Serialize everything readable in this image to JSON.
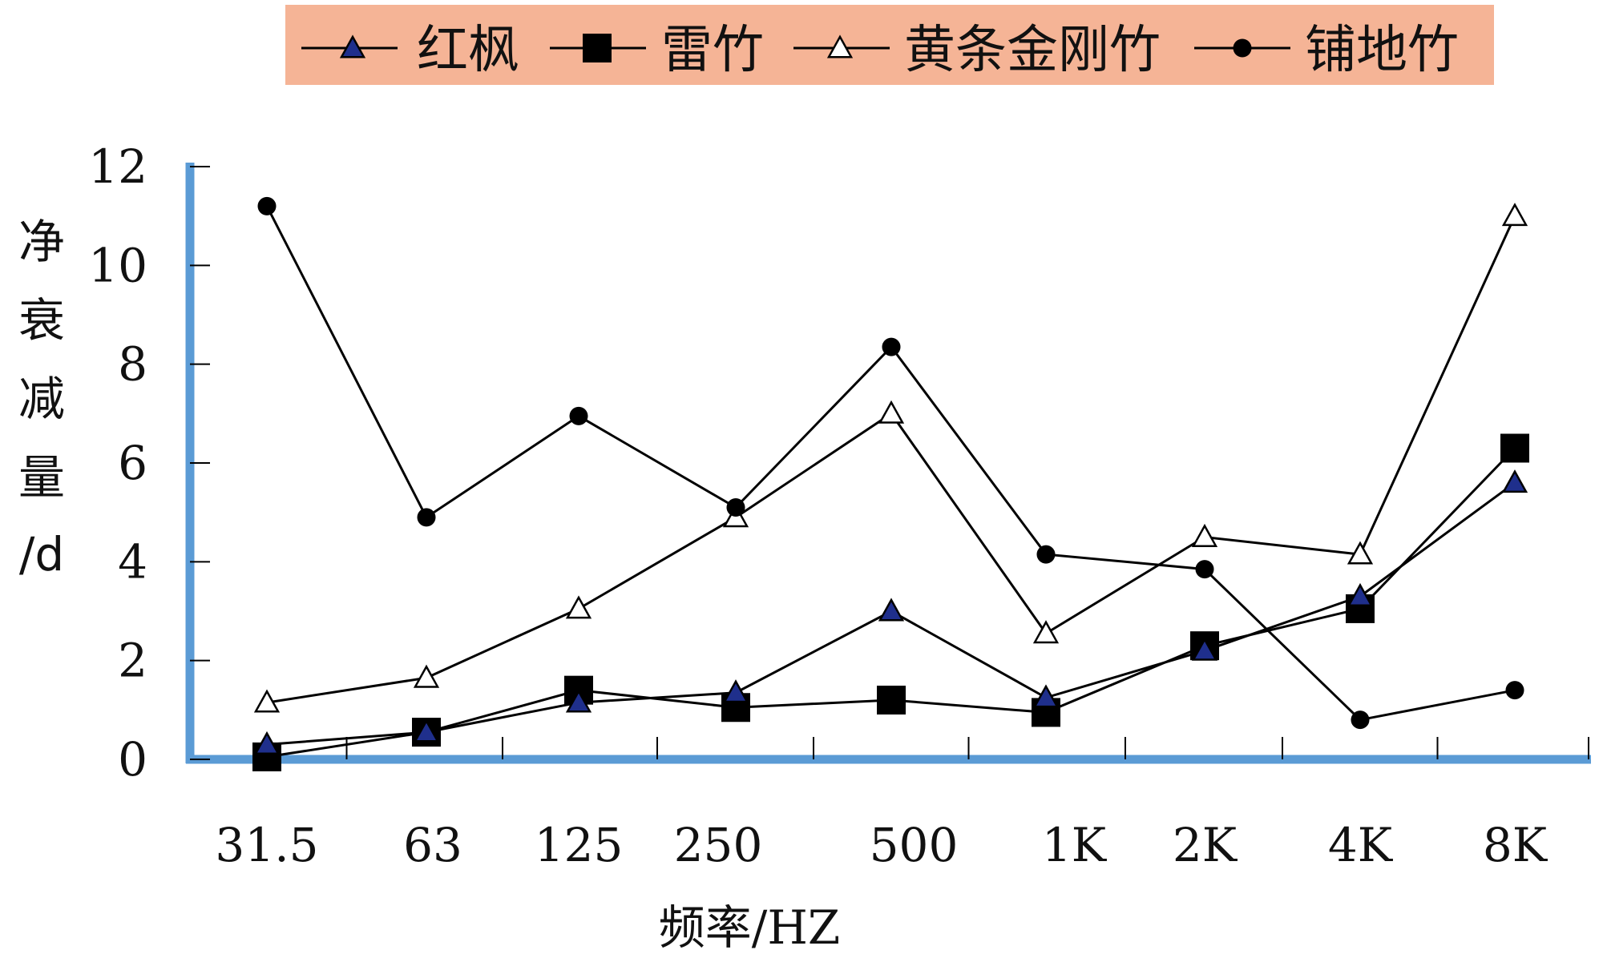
{
  "chart_data": {
    "type": "line",
    "categories": [
      "31.5",
      "63",
      "125",
      "250",
      "500",
      "1K",
      "2K",
      "4K",
      "8K"
    ],
    "series": [
      {
        "name": "红枫",
        "marker": "triangle-filled",
        "values": [
          0.3,
          0.55,
          1.15,
          1.35,
          3.0,
          1.25,
          2.2,
          3.3,
          5.6
        ]
      },
      {
        "name": "雷竹",
        "marker": "square-filled",
        "values": [
          0.05,
          0.55,
          1.4,
          1.05,
          1.2,
          0.95,
          2.3,
          3.05,
          6.3
        ]
      },
      {
        "name": "黄条金刚竹",
        "marker": "triangle-open",
        "values": [
          1.15,
          1.65,
          3.05,
          4.9,
          7.0,
          2.55,
          4.5,
          4.15,
          11.0
        ]
      },
      {
        "name": "铺地竹",
        "marker": "circle-filled",
        "values": [
          11.2,
          4.9,
          6.95,
          5.1,
          8.35,
          4.15,
          3.85,
          0.8,
          1.4
        ]
      }
    ],
    "xlabel": "频率/HZ",
    "ylabel_chars": [
      "净",
      "衰",
      "减",
      "量",
      "/d"
    ],
    "ylim": [
      0,
      12
    ],
    "yticks": [
      "0",
      "2",
      "4",
      "6",
      "8",
      "10",
      "12"
    ],
    "grid": false,
    "legend_position": "top",
    "colors": {
      "axis": "#5b9bd5",
      "legend_bg": "#f5b496",
      "line": "#000000",
      "triangle_fill": "#1f2f8c"
    }
  }
}
